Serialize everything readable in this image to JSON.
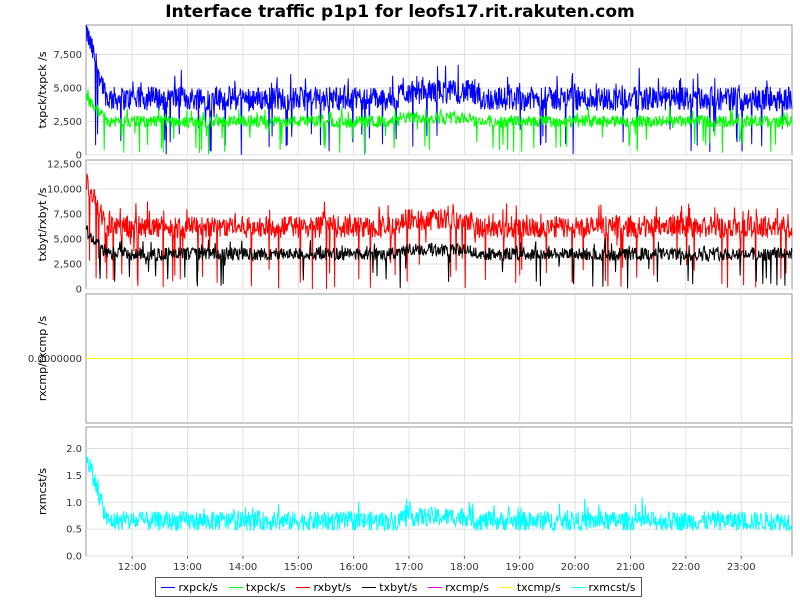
{
  "title": "Interface traffic p1p1 for leofs17.rit.rakuten.com",
  "colors": {
    "rxpck": "#0000ff",
    "txpck": "#00ff00",
    "rxbyt": "#ff0000",
    "txbyt": "#000000",
    "rxcmp": "#ff00ff",
    "txcmp": "#ffff00",
    "rxmcst": "#00ffff"
  },
  "legend": [
    {
      "key": "rxpck",
      "label": "rxpck/s"
    },
    {
      "key": "txpck",
      "label": "txpck/s"
    },
    {
      "key": "rxbyt",
      "label": "rxbyt/s"
    },
    {
      "key": "txbyt",
      "label": "txbyt/s"
    },
    {
      "key": "rxcmp",
      "label": "rxcmp/s"
    },
    {
      "key": "txcmp",
      "label": "txcmp/s"
    },
    {
      "key": "rxmcst",
      "label": "rxmcst/s"
    }
  ],
  "chart_data": {
    "type": "line",
    "title": "Interface traffic p1p1 for leofs17.rit.rakuten.com",
    "x_range": [
      "11:10",
      "23:55"
    ],
    "x_ticks": [
      "12:00",
      "13:00",
      "14:00",
      "15:00",
      "16:00",
      "17:00",
      "18:00",
      "19:00",
      "20:00",
      "21:00",
      "22:00",
      "23:00"
    ],
    "grid": true,
    "legend_placement": "bottom",
    "panels": [
      {
        "ylabel": "txpck/txpck /s",
        "ylim": [
          0,
          9700
        ],
        "yticks": [
          "0",
          "2,500",
          "5,000",
          "7,500"
        ],
        "yvals": [
          0,
          2500,
          5000,
          7500
        ],
        "series": [
          {
            "name": "rxpck/s",
            "key": "rxpck",
            "start_peak": 9300,
            "base": 4200,
            "noise": 900,
            "dip": 0.85
          },
          {
            "name": "txpck/s",
            "key": "txpck",
            "start_peak": 4300,
            "base": 2500,
            "noise": 450,
            "dip": 0.7
          }
        ]
      },
      {
        "ylabel": "txbyt/rxbyt /s",
        "ylim": [
          0,
          12900
        ],
        "yticks": [
          "0",
          "2,500",
          "5,000",
          "7,500",
          "10,000",
          "12,500"
        ],
        "yvals": [
          0,
          2500,
          5000,
          7500,
          10000,
          12500
        ],
        "series": [
          {
            "name": "rxbyt/s",
            "key": "rxbyt",
            "start_peak": 10700,
            "base": 6200,
            "noise": 1100,
            "dip": 0.85
          },
          {
            "name": "txbyt/s",
            "key": "txbyt",
            "start_peak": 5900,
            "base": 3500,
            "noise": 650,
            "dip": 0.7
          }
        ]
      },
      {
        "ylabel": "rxcmp/txcmp /s",
        "ylim": [
          -1,
          1
        ],
        "yticks": [
          "0.0000000"
        ],
        "yvals": [
          0
        ],
        "series": [
          {
            "name": "rxcmp/s",
            "key": "rxcmp",
            "constant": 0
          },
          {
            "name": "txcmp/s",
            "key": "txcmp",
            "constant": 0
          }
        ]
      },
      {
        "ylabel": "rxmcst/s",
        "ylim": [
          0,
          2.4
        ],
        "yticks": [
          "0.0",
          "0.5",
          "1.0",
          "1.5",
          "2.0"
        ],
        "yvals": [
          0,
          0.5,
          1.0,
          1.5,
          2.0
        ],
        "series": [
          {
            "name": "rxmcst/s",
            "key": "rxmcst",
            "start_peak": 1.9,
            "base": 0.65,
            "noise": 0.18,
            "dip": 0.0
          }
        ]
      }
    ]
  }
}
